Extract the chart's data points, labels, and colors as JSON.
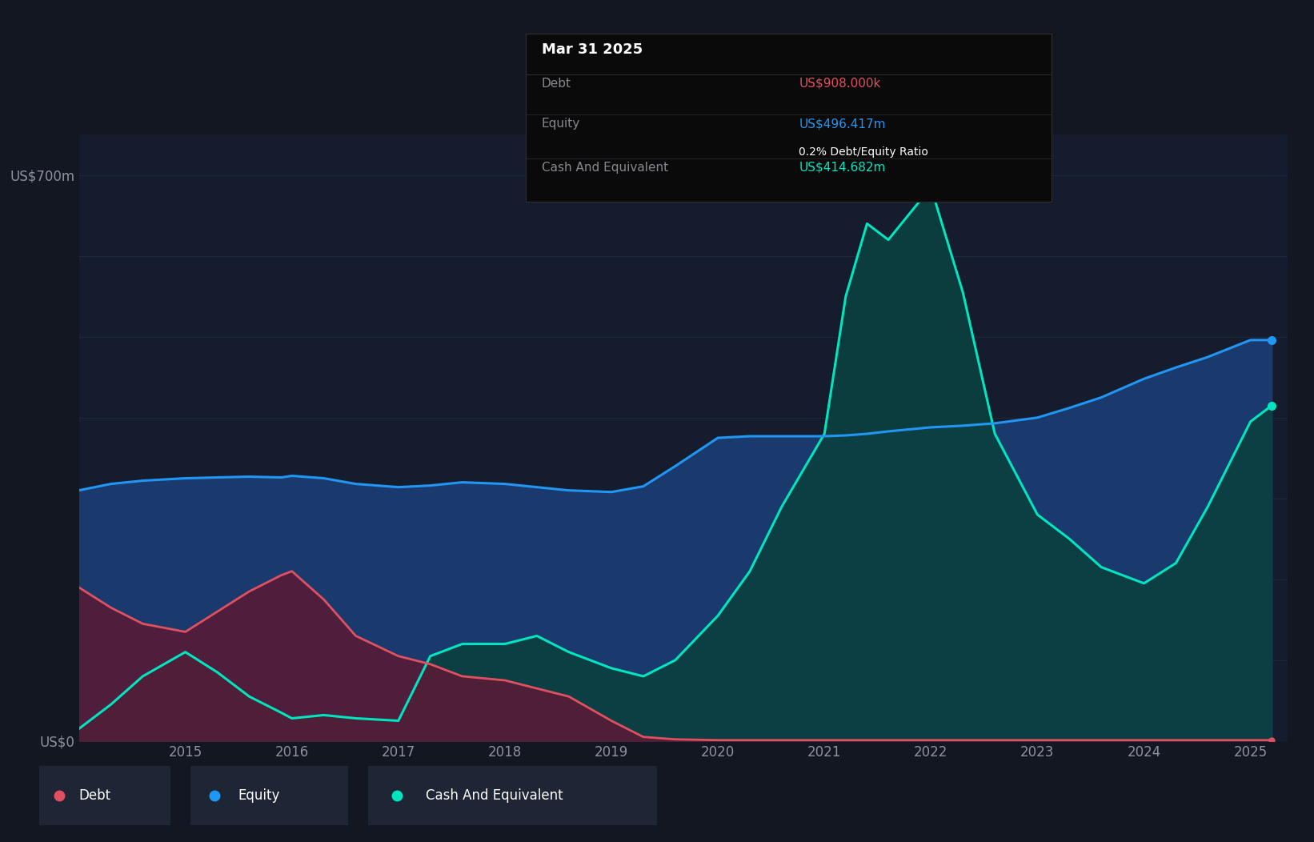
{
  "background_color": "#131722",
  "plot_bg_color": "#141c2e",
  "grid_color": "#263050",
  "ylabel_700": "US$700m",
  "ylabel_0": "US$0",
  "x_labels": [
    "2015",
    "2016",
    "2017",
    "2018",
    "2019",
    "2020",
    "2021",
    "2022",
    "2023",
    "2024",
    "2025"
  ],
  "x_ticks": [
    2015,
    2016,
    2017,
    2018,
    2019,
    2020,
    2021,
    2022,
    2023,
    2024,
    2025
  ],
  "ylim": [
    0,
    750
  ],
  "equity_color": "#2196f3",
  "equity_fill": "#1a3a6e",
  "debt_color": "#e05060",
  "debt_fill": "#5a1a35",
  "cash_color": "#00e5c0",
  "cash_fill": "#0a4040",
  "legend_bg": "#1e2535",
  "tooltip_bg": "#0a0a0a",
  "tooltip_border": "#2a2a2a",
  "tooltip_title": "Mar 31 2025",
  "tooltip_debt_label": "Debt",
  "tooltip_debt_value": "US$908.000k",
  "tooltip_equity_label": "Equity",
  "tooltip_equity_value": "US$496.417m",
  "tooltip_ratio": "0.2% Debt/Equity Ratio",
  "tooltip_cash_label": "Cash And Equivalent",
  "tooltip_cash_value": "US$414.682m",
  "time_points": [
    2014.0,
    2014.3,
    2014.6,
    2015.0,
    2015.3,
    2015.6,
    2015.9,
    2016.0,
    2016.3,
    2016.6,
    2017.0,
    2017.3,
    2017.6,
    2018.0,
    2018.3,
    2018.6,
    2019.0,
    2019.3,
    2019.6,
    2020.0,
    2020.3,
    2020.6,
    2021.0,
    2021.2,
    2021.4,
    2021.6,
    2022.0,
    2022.3,
    2022.6,
    2023.0,
    2023.3,
    2023.6,
    2024.0,
    2024.3,
    2024.6,
    2025.0,
    2025.2
  ],
  "equity": [
    310,
    318,
    322,
    325,
    326,
    327,
    326,
    328,
    325,
    318,
    314,
    316,
    320,
    318,
    314,
    310,
    308,
    315,
    340,
    375,
    377,
    377,
    377,
    378,
    380,
    383,
    388,
    390,
    393,
    400,
    412,
    425,
    448,
    462,
    475,
    496,
    496
  ],
  "debt": [
    190,
    165,
    145,
    135,
    160,
    185,
    205,
    210,
    175,
    130,
    105,
    95,
    80,
    75,
    65,
    55,
    25,
    5,
    2,
    1,
    1,
    1,
    1,
    1,
    1,
    1,
    1,
    1,
    1,
    1,
    1,
    1,
    1,
    1,
    1,
    1,
    1
  ],
  "cash": [
    15,
    45,
    80,
    110,
    85,
    55,
    35,
    28,
    32,
    28,
    25,
    105,
    120,
    120,
    130,
    110,
    90,
    80,
    100,
    155,
    210,
    290,
    380,
    550,
    640,
    620,
    685,
    555,
    380,
    280,
    250,
    215,
    195,
    220,
    290,
    395,
    415
  ]
}
